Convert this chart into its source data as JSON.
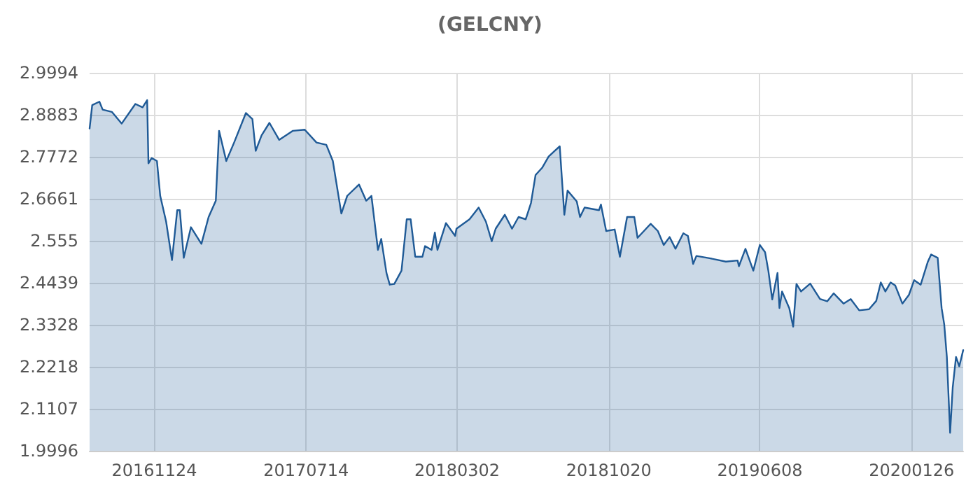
{
  "chart_data": {
    "type": "area",
    "title": "(GELCNY)",
    "x": [
      "2016-08-17",
      "2016-08-21",
      "2016-09-01",
      "2016-09-06",
      "2016-09-20",
      "2016-10-05",
      "2016-10-26",
      "2016-11-06",
      "2016-11-13",
      "2016-11-15",
      "2016-11-20",
      "2016-11-28",
      "2016-12-03",
      "2016-12-12",
      "2016-12-21",
      "2016-12-29",
      "2017-01-02",
      "2017-01-08",
      "2017-01-19",
      "2017-02-04",
      "2017-02-15",
      "2017-02-26",
      "2017-03-03",
      "2017-03-14",
      "2017-03-26",
      "2017-04-13",
      "2017-04-23",
      "2017-04-28",
      "2017-05-07",
      "2017-05-19",
      "2017-06-03",
      "2017-06-24",
      "2017-07-12",
      "2017-07-30",
      "2017-08-14",
      "2017-08-24",
      "2017-09-06",
      "2017-09-15",
      "2017-10-03",
      "2017-10-14",
      "2017-10-22",
      "2017-11-01",
      "2017-11-06",
      "2017-11-14",
      "2017-11-19",
      "2017-11-26",
      "2017-12-07",
      "2017-12-15",
      "2017-12-21",
      "2017-12-28",
      "2018-01-08",
      "2018-01-12",
      "2018-01-22",
      "2018-01-27",
      "2018-01-31",
      "2018-02-13",
      "2018-02-27",
      "2018-03-01",
      "2018-03-21",
      "2018-04-04",
      "2018-04-15",
      "2018-04-24",
      "2018-04-30",
      "2018-05-14",
      "2018-05-25",
      "2018-06-04",
      "2018-06-15",
      "2018-06-23",
      "2018-06-30",
      "2018-07-10",
      "2018-07-20",
      "2018-07-28",
      "2018-08-06",
      "2018-08-13",
      "2018-08-18",
      "2018-09-01",
      "2018-09-06",
      "2018-09-13",
      "2018-10-05",
      "2018-10-08",
      "2018-10-16",
      "2018-10-29",
      "2018-11-06",
      "2018-11-17",
      "2018-11-28",
      "2018-12-03",
      "2018-12-23",
      "2019-01-03",
      "2019-01-12",
      "2019-01-21",
      "2019-01-30",
      "2019-02-11",
      "2019-02-18",
      "2019-02-26",
      "2019-03-03",
      "2019-03-23",
      "2019-04-17",
      "2019-05-05",
      "2019-05-07",
      "2019-05-17",
      "2019-05-29",
      "2019-06-08",
      "2019-06-16",
      "2019-06-21",
      "2019-06-27",
      "2019-07-05",
      "2019-07-08",
      "2019-07-12",
      "2019-07-23",
      "2019-07-29",
      "2019-08-03",
      "2019-08-10",
      "2019-08-24",
      "2019-09-08",
      "2019-09-19",
      "2019-09-29",
      "2019-10-14",
      "2019-10-25",
      "2019-11-07",
      "2019-11-22",
      "2019-12-03",
      "2019-12-10",
      "2019-12-17",
      "2019-12-25",
      "2020-01-01",
      "2020-01-12",
      "2020-01-22",
      "2020-01-30",
      "2020-02-09",
      "2020-02-20",
      "2020-02-25",
      "2020-03-06",
      "2020-03-12",
      "2020-03-16",
      "2020-03-20",
      "2020-03-25",
      "2020-03-29",
      "2020-04-03",
      "2020-04-08",
      "2020-04-14"
    ],
    "series": [
      {
        "color": "#1f5a96",
        "values": [
          2.852,
          2.914,
          2.923,
          2.902,
          2.896,
          2.865,
          2.917,
          2.908,
          2.927,
          2.76,
          2.774,
          2.766,
          2.674,
          2.606,
          2.504,
          2.636,
          2.636,
          2.51,
          2.591,
          2.547,
          2.618,
          2.661,
          2.846,
          2.766,
          2.815,
          2.893,
          2.877,
          2.793,
          2.834,
          2.867,
          2.822,
          2.846,
          2.849,
          2.815,
          2.809,
          2.766,
          2.627,
          2.674,
          2.704,
          2.661,
          2.674,
          2.531,
          2.56,
          2.47,
          2.439,
          2.441,
          2.476,
          2.612,
          2.612,
          2.513,
          2.513,
          2.541,
          2.531,
          2.577,
          2.531,
          2.602,
          2.568,
          2.587,
          2.612,
          2.643,
          2.606,
          2.554,
          2.587,
          2.624,
          2.587,
          2.618,
          2.612,
          2.655,
          2.729,
          2.748,
          2.778,
          2.791,
          2.805,
          2.624,
          2.688,
          2.659,
          2.618,
          2.643,
          2.636,
          2.651,
          2.581,
          2.585,
          2.513,
          2.618,
          2.618,
          2.563,
          2.6,
          2.581,
          2.544,
          2.565,
          2.534,
          2.575,
          2.568,
          2.494,
          2.515,
          2.509,
          2.5,
          2.503,
          2.488,
          2.534,
          2.476,
          2.544,
          2.525,
          2.476,
          2.4,
          2.47,
          2.377,
          2.421,
          2.377,
          2.328,
          2.441,
          2.421,
          2.442,
          2.401,
          2.395,
          2.416,
          2.389,
          2.401,
          2.371,
          2.374,
          2.396,
          2.445,
          2.421,
          2.445,
          2.437,
          2.389,
          2.412,
          2.451,
          2.439,
          2.5,
          2.519,
          2.51,
          2.377,
          2.334,
          2.248,
          2.047,
          2.168,
          2.248,
          2.223,
          2.266
        ]
      }
    ],
    "xlim": [
      "2016-08-17",
      "2020-04-14"
    ],
    "xticks": [
      {
        "value": "2016-11-24",
        "label": "20161124"
      },
      {
        "value": "2017-07-14",
        "label": "20170714"
      },
      {
        "value": "2018-03-02",
        "label": "20180302"
      },
      {
        "value": "2018-10-20",
        "label": "20181020"
      },
      {
        "value": "2019-06-08",
        "label": "20190608"
      },
      {
        "value": "2020-01-26",
        "label": "20200126"
      }
    ],
    "ylim": [
      1.9996,
      2.9994
    ],
    "yticks": [
      1.9996,
      2.1107,
      2.2218,
      2.3328,
      2.4439,
      2.555,
      2.6661,
      2.7772,
      2.8883,
      2.9994
    ],
    "grid": true,
    "marker": "none",
    "line_style": "solid"
  }
}
